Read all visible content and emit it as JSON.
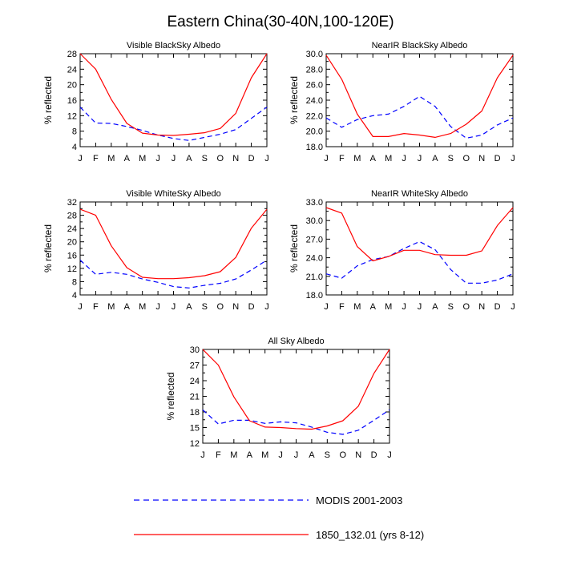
{
  "title": "Eastern China(30-40N,100-120E)",
  "months": [
    "J",
    "F",
    "M",
    "A",
    "M",
    "J",
    "J",
    "A",
    "S",
    "O",
    "N",
    "D",
    "J"
  ],
  "ylabel": "% reflected",
  "legend": {
    "modis": "MODIS 2001-2003",
    "model": "1850_132.01 (yrs 8-12)"
  },
  "colors": {
    "modis": "#0000ff",
    "model": "#ff0000"
  },
  "chart_data": [
    {
      "type": "line",
      "title": "Visible BlackSky Albedo",
      "ylabel": "% reflected",
      "categories": [
        "J",
        "F",
        "M",
        "A",
        "M",
        "J",
        "J",
        "A",
        "S",
        "O",
        "N",
        "D",
        "J"
      ],
      "ylim": [
        4,
        28
      ],
      "yticks": [
        4,
        8,
        12,
        16,
        20,
        24,
        28
      ],
      "yticklabels": [
        "4",
        "8",
        "12",
        "16",
        "20",
        "24",
        "28"
      ],
      "series": [
        {
          "name": "MODIS 2001-2003",
          "style": "dashed",
          "color": "#0000ff",
          "values": [
            14.2,
            10.1,
            10.0,
            9.2,
            8.2,
            7.0,
            6.1,
            5.6,
            6.4,
            7.2,
            8.4,
            11.3,
            14.2
          ]
        },
        {
          "name": "1850_132.01 (yrs 8-12)",
          "style": "solid",
          "color": "#ff0000",
          "values": [
            28.0,
            24.0,
            16.2,
            10.0,
            7.5,
            7.0,
            6.9,
            7.2,
            7.6,
            8.7,
            12.6,
            21.8,
            28.0
          ]
        }
      ]
    },
    {
      "type": "line",
      "title": "NearIR BlackSky Albedo",
      "ylabel": "% reflected",
      "categories": [
        "J",
        "F",
        "M",
        "A",
        "M",
        "J",
        "J",
        "A",
        "S",
        "O",
        "N",
        "D",
        "J"
      ],
      "ylim": [
        18,
        30
      ],
      "yticks": [
        18,
        20,
        22,
        24,
        26,
        28,
        30
      ],
      "yticklabels": [
        "18.0",
        "20.0",
        "22.0",
        "24.0",
        "26.0",
        "28.0",
        "30.0"
      ],
      "series": [
        {
          "name": "MODIS 2001-2003",
          "style": "dashed",
          "color": "#0000ff",
          "values": [
            21.7,
            20.5,
            21.5,
            22.0,
            22.2,
            23.2,
            24.5,
            23.2,
            20.6,
            19.1,
            19.5,
            20.8,
            21.7
          ]
        },
        {
          "name": "1850_132.01 (yrs 8-12)",
          "style": "solid",
          "color": "#ff0000",
          "values": [
            29.8,
            26.7,
            22.2,
            19.3,
            19.3,
            19.7,
            19.5,
            19.2,
            19.7,
            20.9,
            22.6,
            26.9,
            29.8
          ]
        }
      ]
    },
    {
      "type": "line",
      "title": "Visible WhiteSky Albedo",
      "ylabel": "% reflected",
      "categories": [
        "J",
        "F",
        "M",
        "A",
        "M",
        "J",
        "J",
        "A",
        "S",
        "O",
        "N",
        "D",
        "J"
      ],
      "ylim": [
        4,
        32
      ],
      "yticks": [
        4,
        8,
        12,
        16,
        20,
        24,
        28,
        32
      ],
      "yticklabels": [
        "4",
        "8",
        "12",
        "16",
        "20",
        "24",
        "28",
        "32"
      ],
      "series": [
        {
          "name": "MODIS 2001-2003",
          "style": "dashed",
          "color": "#0000ff",
          "values": [
            14.5,
            10.2,
            10.8,
            10.2,
            8.8,
            7.8,
            6.5,
            6.1,
            6.9,
            7.5,
            8.8,
            11.5,
            14.5
          ]
        },
        {
          "name": "1850_132.01 (yrs 8-12)",
          "style": "solid",
          "color": "#ff0000",
          "values": [
            29.8,
            28.0,
            18.8,
            12.2,
            9.3,
            8.9,
            8.9,
            9.2,
            9.8,
            11.0,
            15.3,
            24.1,
            29.8
          ]
        }
      ]
    },
    {
      "type": "line",
      "title": "NearIR WhiteSky Albedo",
      "ylabel": "% reflected",
      "categories": [
        "J",
        "F",
        "M",
        "A",
        "M",
        "J",
        "J",
        "A",
        "S",
        "O",
        "N",
        "D",
        "J"
      ],
      "ylim": [
        18,
        33
      ],
      "yticks": [
        18,
        21,
        24,
        27,
        30,
        33
      ],
      "yticklabels": [
        "18.0",
        "21.0",
        "24.0",
        "27.0",
        "30.0",
        "33.0"
      ],
      "series": [
        {
          "name": "MODIS 2001-2003",
          "style": "dashed",
          "color": "#0000ff",
          "values": [
            21.4,
            20.7,
            22.7,
            23.7,
            24.2,
            25.5,
            26.6,
            25.3,
            22.1,
            19.9,
            19.9,
            20.4,
            21.4
          ]
        },
        {
          "name": "1850_132.01 (yrs 8-12)",
          "style": "solid",
          "color": "#ff0000",
          "values": [
            32.1,
            31.2,
            25.8,
            23.5,
            24.2,
            25.2,
            25.2,
            24.5,
            24.4,
            24.4,
            25.1,
            29.2,
            32.1
          ]
        }
      ]
    },
    {
      "type": "line",
      "title": "All Sky Albedo",
      "ylabel": "% reflected",
      "categories": [
        "J",
        "F",
        "M",
        "A",
        "M",
        "J",
        "J",
        "A",
        "S",
        "O",
        "N",
        "D",
        "J"
      ],
      "ylim": [
        12,
        30
      ],
      "yticks": [
        12,
        15,
        18,
        21,
        24,
        27,
        30
      ],
      "yticklabels": [
        "12",
        "15",
        "18",
        "21",
        "24",
        "27",
        "30"
      ],
      "series": [
        {
          "name": "MODIS 2001-2003",
          "style": "dashed",
          "color": "#0000ff",
          "values": [
            18.4,
            15.7,
            16.4,
            16.4,
            15.8,
            16.1,
            15.9,
            15.1,
            14.1,
            13.7,
            14.5,
            16.4,
            18.4
          ]
        },
        {
          "name": "1850_132.01 (yrs 8-12)",
          "style": "solid",
          "color": "#ff0000",
          "values": [
            30.0,
            27.0,
            20.9,
            16.3,
            15.1,
            15.0,
            14.8,
            14.7,
            15.3,
            16.3,
            19.1,
            25.4,
            30.0
          ]
        }
      ]
    }
  ]
}
